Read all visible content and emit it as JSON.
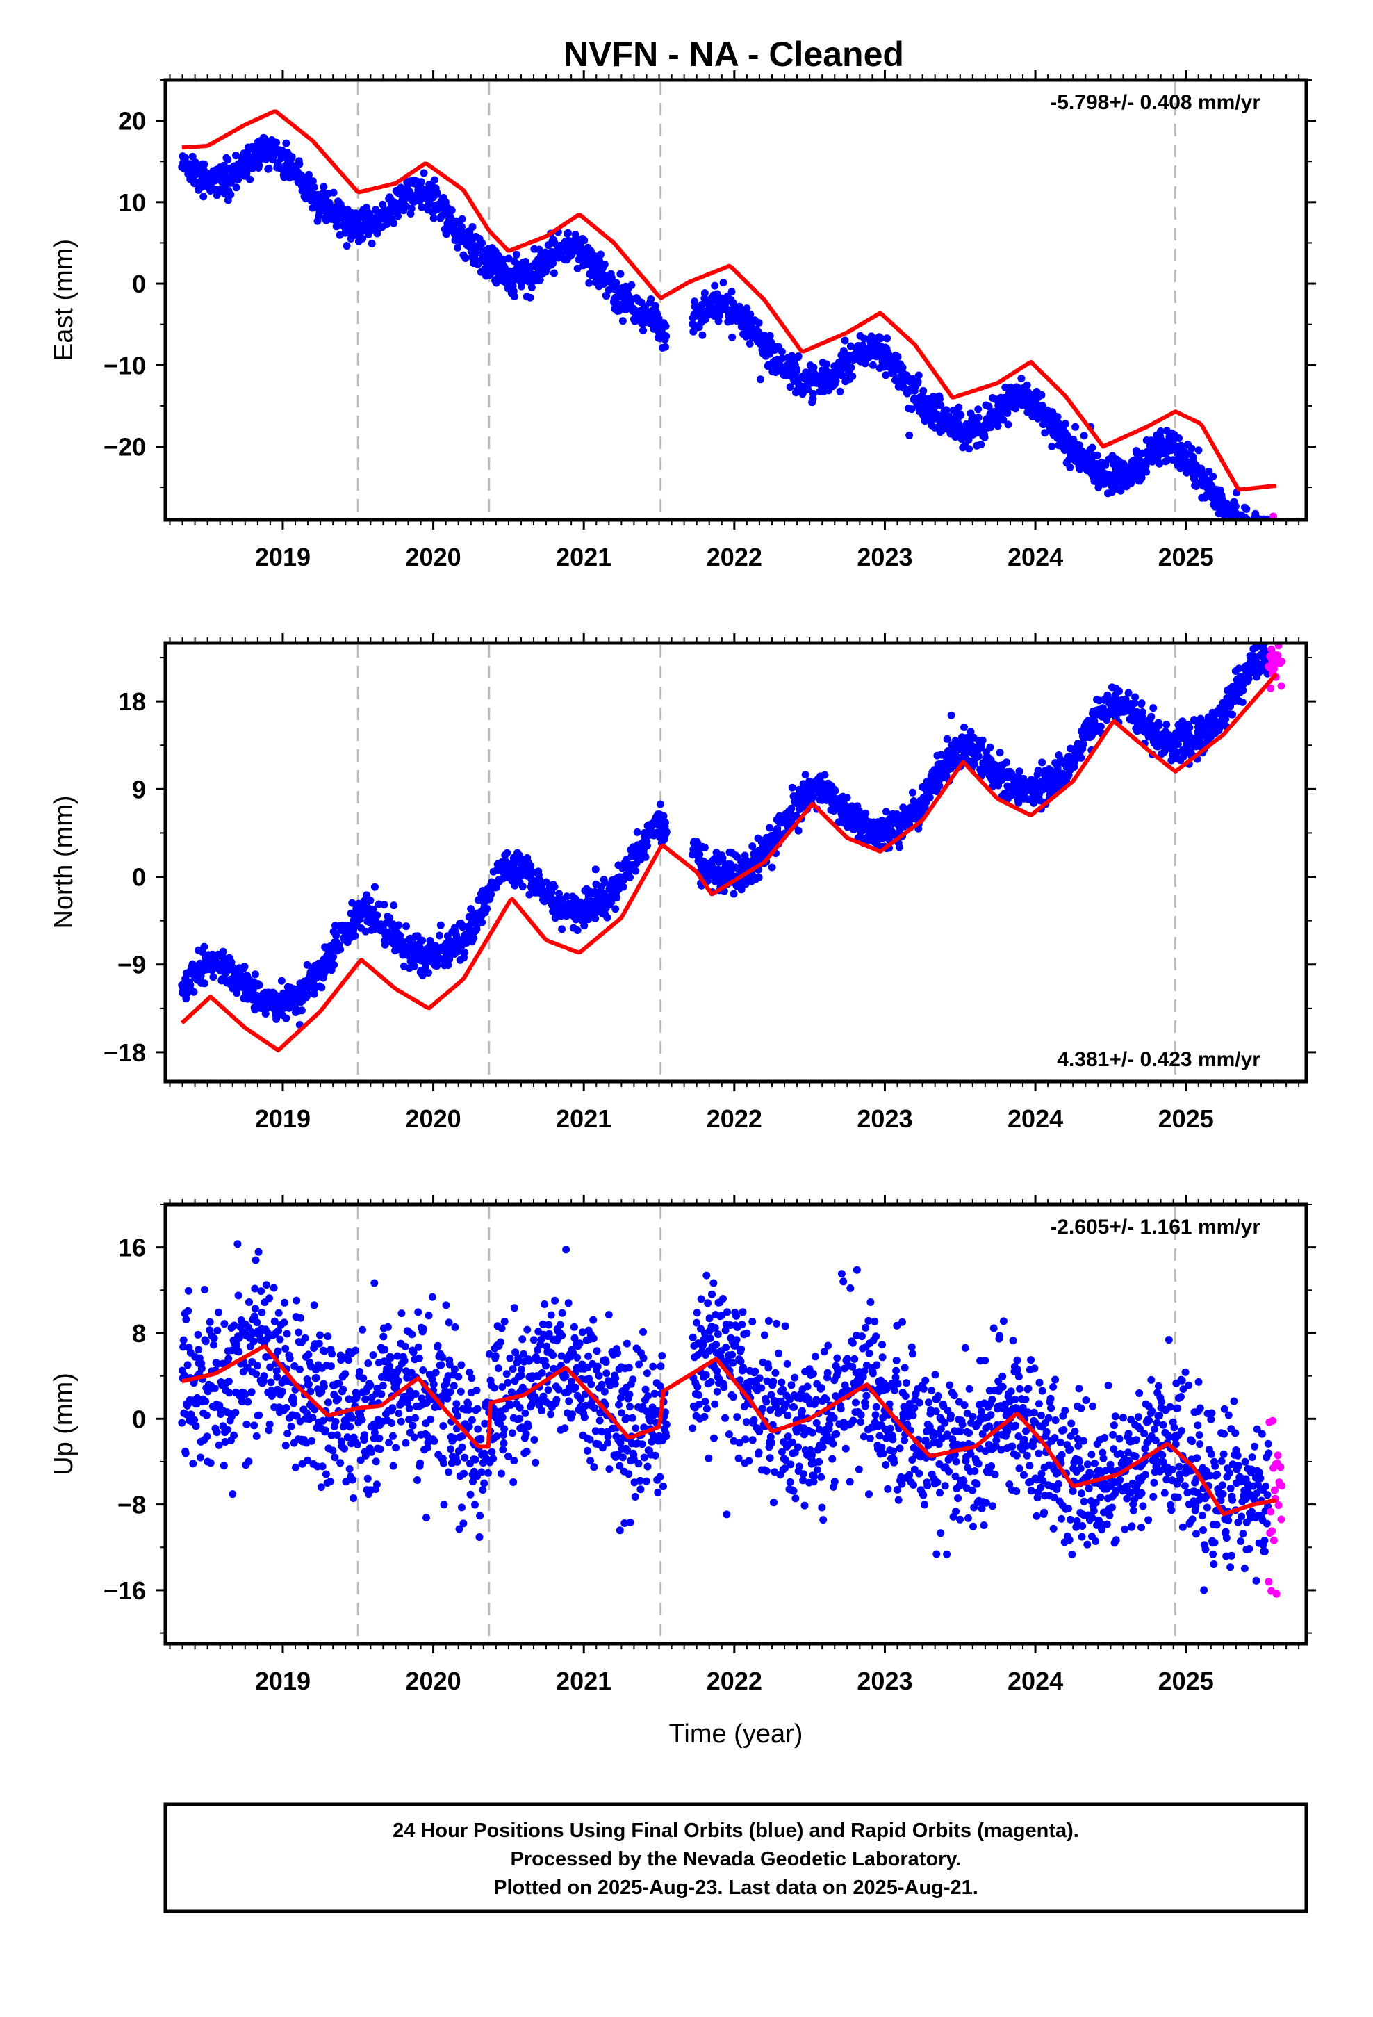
{
  "title": "NVFN  - NA - Cleaned",
  "colors": {
    "final_orbits": "#0000ff",
    "rapid_orbits": "#ff00ff",
    "model_fit": "#ff0000",
    "event_lines": "#bbbbbb"
  },
  "caption": {
    "line1": "24 Hour Positions Using Final Orbits (blue) and Rapid Orbits (magenta).",
    "line2": "Processed by the Nevada Geodetic Laboratory.",
    "line3": "Plotted on 2025-Aug-23. Last data on 2025-Aug-21."
  },
  "chart_data": [
    {
      "type": "scatter",
      "component": "east",
      "ylabel": "East (mm)",
      "xlabel": "",
      "rate_text": "-5.798+/- 0.408 mm/yr",
      "rate_position": "top-right",
      "xlim": [
        2018.22,
        2025.8
      ],
      "ylim": [
        -29,
        25
      ],
      "xticks": [
        2019,
        2020,
        2021,
        2022,
        2023,
        2024,
        2025
      ],
      "xtick_labels": [
        "2019",
        "2020",
        "2021",
        "2022",
        "2023",
        "2024",
        "2025"
      ],
      "yticks": [
        -20,
        -10,
        0,
        10,
        20
      ],
      "ytick_labels": [
        "−20",
        "−10",
        "0",
        "10",
        "20"
      ],
      "event_lines": [
        2019.5,
        2020.37,
        2021.51,
        2024.93
      ],
      "data_span": [
        2018.33,
        2025.55
      ],
      "gap": [
        2021.55,
        2021.72
      ],
      "rapid_span": [
        2025.55,
        2025.64
      ],
      "scatter_std": 1.0,
      "model": {
        "offset": 16.4,
        "rate": -5.798,
        "t0": 2018.33,
        "annual_amp": 3.0,
        "annual_peak": 2018.95,
        "semiannual_amp": 0.5,
        "semiannual_peak": 2018.9,
        "steps": [
          {
            "t": 2019.5,
            "d": 0.6
          },
          {
            "t": 2020.37,
            "d": -0.8
          },
          {
            "t": 2021.51,
            "d": -1.2
          },
          {
            "t": 2024.93,
            "d": -1.0
          }
        ]
      },
      "fit_points": [
        [
          2018.33,
          16.7
        ],
        [
          2018.5,
          16.9
        ],
        [
          2018.75,
          19.5
        ],
        [
          2018.95,
          21.2
        ],
        [
          2019.2,
          17.5
        ],
        [
          2019.5,
          11.2
        ],
        [
          2019.75,
          12.3
        ],
        [
          2019.95,
          14.8
        ],
        [
          2020.2,
          11.5
        ],
        [
          2020.37,
          6.5
        ],
        [
          2020.5,
          4.0
        ],
        [
          2020.75,
          5.8
        ],
        [
          2020.97,
          8.5
        ],
        [
          2021.2,
          5.0
        ],
        [
          2021.51,
          -1.8
        ],
        [
          2021.7,
          0.2
        ],
        [
          2021.97,
          2.2
        ],
        [
          2022.2,
          -2.0
        ],
        [
          2022.45,
          -8.4
        ],
        [
          2022.75,
          -6.0
        ],
        [
          2022.97,
          -3.6
        ],
        [
          2023.2,
          -7.5
        ],
        [
          2023.45,
          -14.0
        ],
        [
          2023.75,
          -12.2
        ],
        [
          2023.97,
          -9.6
        ],
        [
          2024.2,
          -13.8
        ],
        [
          2024.45,
          -20.0
        ],
        [
          2024.75,
          -17.5
        ],
        [
          2024.93,
          -15.7
        ],
        [
          2025.1,
          -17.2
        ],
        [
          2025.35,
          -25.3
        ],
        [
          2025.6,
          -24.8
        ]
      ]
    },
    {
      "type": "scatter",
      "component": "north",
      "ylabel": "North (mm)",
      "xlabel": "",
      "rate_text": "4.381+/- 0.423 mm/yr",
      "rate_position": "bottom-right",
      "xlim": [
        2018.22,
        2025.8
      ],
      "ylim": [
        -21,
        24
      ],
      "xticks": [
        2019,
        2020,
        2021,
        2022,
        2023,
        2024,
        2025
      ],
      "xtick_labels": [
        "2019",
        "2020",
        "2021",
        "2022",
        "2023",
        "2024",
        "2025"
      ],
      "yticks": [
        -18,
        -9,
        0,
        9,
        18
      ],
      "ytick_labels": [
        "−18",
        "−9",
        "0",
        "9",
        "18"
      ],
      "event_lines": [
        2019.5,
        2020.37,
        2021.51,
        2024.93
      ],
      "data_span": [
        2018.33,
        2025.55
      ],
      "gap": [
        2021.55,
        2021.72
      ],
      "rapid_span": [
        2025.55,
        2025.64
      ],
      "scatter_std": 0.9,
      "model": {
        "offset": -13.0,
        "rate": 4.381,
        "t0": 2018.33,
        "annual_amp": 3.2,
        "annual_peak": 2018.52,
        "semiannual_amp": 0.4,
        "semiannual_peak": 2018.5,
        "steps": [
          {
            "t": 2019.5,
            "d": 0.3
          },
          {
            "t": 2020.37,
            "d": 0.5
          },
          {
            "t": 2021.51,
            "d": -0.8
          },
          {
            "t": 2024.93,
            "d": 0.4
          }
        ]
      },
      "fit_points": [
        [
          2018.33,
          -15.0
        ],
        [
          2018.52,
          -12.3
        ],
        [
          2018.75,
          -15.5
        ],
        [
          2018.97,
          -17.8
        ],
        [
          2019.25,
          -13.8
        ],
        [
          2019.52,
          -8.5
        ],
        [
          2019.75,
          -11.5
        ],
        [
          2019.97,
          -13.5
        ],
        [
          2020.2,
          -10.5
        ],
        [
          2020.52,
          -2.2
        ],
        [
          2020.75,
          -6.5
        ],
        [
          2020.97,
          -7.8
        ],
        [
          2021.25,
          -4.2
        ],
        [
          2021.52,
          3.3
        ],
        [
          2021.75,
          0.5
        ],
        [
          2021.85,
          -1.8
        ],
        [
          2022.2,
          1.5
        ],
        [
          2022.52,
          7.5
        ],
        [
          2022.75,
          4.0
        ],
        [
          2022.97,
          2.6
        ],
        [
          2023.25,
          5.8
        ],
        [
          2023.52,
          11.8
        ],
        [
          2023.75,
          8.0
        ],
        [
          2023.97,
          6.3
        ],
        [
          2024.25,
          9.8
        ],
        [
          2024.52,
          16.0
        ],
        [
          2024.75,
          13.0
        ],
        [
          2024.93,
          10.8
        ],
        [
          2025.25,
          14.6
        ],
        [
          2025.6,
          20.8
        ]
      ]
    },
    {
      "type": "scatter",
      "component": "up",
      "ylabel": "Up (mm)",
      "xlabel": "Time (year)",
      "rate_text": "-2.605+/- 1.161 mm/yr",
      "rate_position": "top-right",
      "xlim": [
        2018.22,
        2025.8
      ],
      "ylim": [
        -21,
        20
      ],
      "xticks": [
        2019,
        2020,
        2021,
        2022,
        2023,
        2024,
        2025
      ],
      "xtick_labels": [
        "2019",
        "2020",
        "2021",
        "2022",
        "2023",
        "2024",
        "2025"
      ],
      "yticks": [
        -16,
        -8,
        0,
        8,
        16
      ],
      "ytick_labels": [
        "−16",
        "−8",
        "0",
        "8",
        "16"
      ],
      "event_lines": [
        2019.5,
        2020.37,
        2021.51,
        2024.93
      ],
      "data_span": [
        2018.33,
        2025.55
      ],
      "gap": [
        2021.55,
        2021.72
      ],
      "rapid_span": [
        2025.55,
        2025.64
      ],
      "scatter_std": 3.6,
      "model": {
        "offset": 5.0,
        "rate": -2.605,
        "t0": 2018.33,
        "annual_amp": 2.3,
        "annual_peak": 2018.88,
        "semiannual_amp": 0.6,
        "semiannual_peak": 2018.85,
        "steps": [
          {
            "t": 2019.5,
            "d": 0.0
          },
          {
            "t": 2020.37,
            "d": 4.0
          },
          {
            "t": 2021.51,
            "d": 3.0
          },
          {
            "t": 2024.93,
            "d": 0.0
          }
        ]
      },
      "fit_points": [
        [
          2018.33,
          3.5
        ],
        [
          2018.55,
          4.2
        ],
        [
          2018.88,
          6.8
        ],
        [
          2019.1,
          3.0
        ],
        [
          2019.3,
          0.3
        ],
        [
          2019.5,
          1.0
        ],
        [
          2019.65,
          1.2
        ],
        [
          2019.9,
          3.8
        ],
        [
          2020.1,
          0.5
        ],
        [
          2020.3,
          -2.6
        ],
        [
          2020.37,
          -2.6
        ],
        [
          2020.38,
          1.5
        ],
        [
          2020.6,
          2.2
        ],
        [
          2020.88,
          4.8
        ],
        [
          2021.1,
          1.5
        ],
        [
          2021.3,
          -1.8
        ],
        [
          2021.51,
          -0.7
        ],
        [
          2021.52,
          2.5
        ],
        [
          2021.88,
          5.6
        ],
        [
          2022.1,
          1.8
        ],
        [
          2022.25,
          -1.2
        ],
        [
          2022.5,
          0.0
        ],
        [
          2022.88,
          3.2
        ],
        [
          2023.1,
          -0.5
        ],
        [
          2023.3,
          -3.5
        ],
        [
          2023.6,
          -2.6
        ],
        [
          2023.88,
          0.5
        ],
        [
          2024.05,
          -2.2
        ],
        [
          2024.25,
          -6.3
        ],
        [
          2024.55,
          -5.2
        ],
        [
          2024.88,
          -2.3
        ],
        [
          2025.05,
          -4.5
        ],
        [
          2025.25,
          -8.9
        ],
        [
          2025.45,
          -8.0
        ],
        [
          2025.6,
          -7.6
        ]
      ]
    }
  ]
}
